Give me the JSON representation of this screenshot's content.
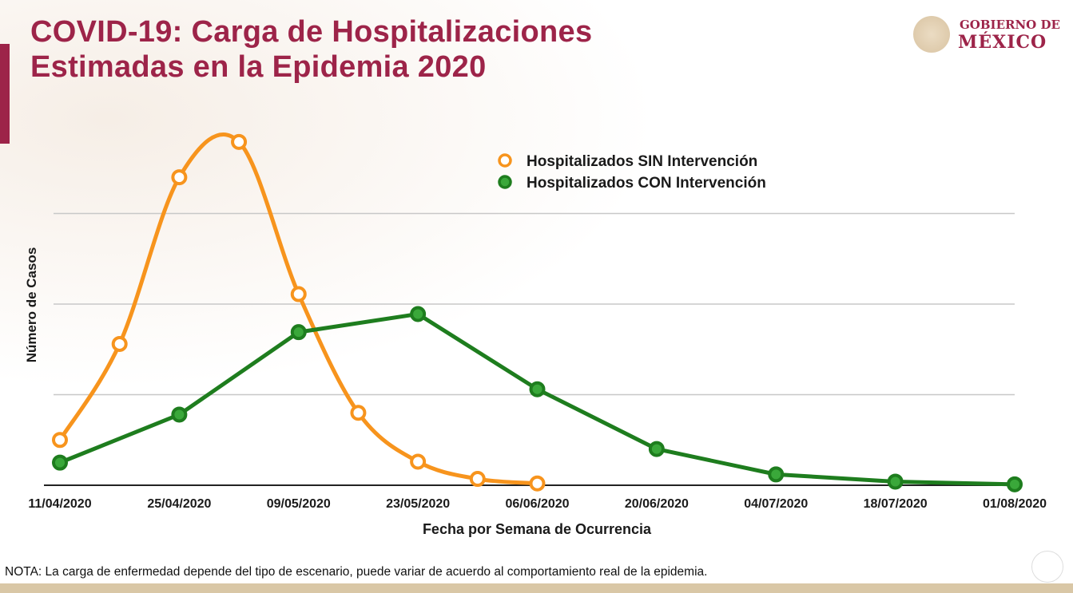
{
  "header": {
    "title_line1": "COVID-19: Carga de Hospitalizaciones",
    "title_line2": "Estimadas en la Epidemia 2020"
  },
  "logo": {
    "line1": "GOBIERNO DE",
    "line2": "MÉXICO"
  },
  "note": "NOTA: La carga de enfermedad depende del tipo de escenario, puede variar de acuerdo al comportamiento real de la epidemia.",
  "chart_data": {
    "type": "line",
    "title": "",
    "xlabel": "Fecha por Semana de Ocurrencia",
    "ylabel": "Número de Casos",
    "x_ticks": [
      "11/04/2020",
      "25/04/2020",
      "09/05/2020",
      "23/05/2020",
      "06/06/2020",
      "20/06/2020",
      "04/07/2020",
      "18/07/2020",
      "01/08/2020"
    ],
    "y_ticks_labeled": false,
    "ylim": [
      0,
      4
    ],
    "grid": "horizontal",
    "legend_position": "top-right",
    "series": [
      {
        "name": "Hospitalizados SIN Intervención",
        "color": "#f7941d",
        "smooth": true,
        "x": [
          "11/04/2020",
          "18/04/2020",
          "25/04/2020",
          "02/05/2020",
          "09/05/2020",
          "16/05/2020",
          "23/05/2020",
          "30/05/2020",
          "06/06/2020"
        ],
        "values": [
          0.5,
          1.56,
          3.4,
          3.79,
          2.11,
          0.8,
          0.26,
          0.07,
          0.02
        ]
      },
      {
        "name": "Hospitalizados CON Intervención",
        "color": "#1e7d1e",
        "smooth": false,
        "x": [
          "11/04/2020",
          "25/04/2020",
          "09/05/2020",
          "23/05/2020",
          "06/06/2020",
          "20/06/2020",
          "04/07/2020",
          "18/07/2020",
          "01/08/2020"
        ],
        "values": [
          0.25,
          0.78,
          1.69,
          1.89,
          1.06,
          0.4,
          0.12,
          0.04,
          0.01
        ]
      }
    ]
  }
}
